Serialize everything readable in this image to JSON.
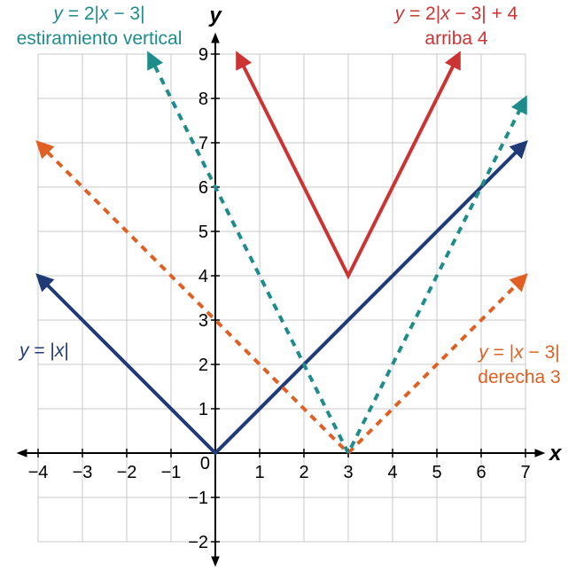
{
  "chart_data": {
    "type": "line",
    "xlabel": "x",
    "ylabel": "y",
    "xlim": [
      -4,
      7
    ],
    "ylim": [
      -2,
      9
    ],
    "grid": true,
    "x_ticks": [
      "−4",
      "−3",
      "−2",
      "−1",
      "1",
      "2",
      "3",
      "4",
      "5",
      "6",
      "7"
    ],
    "y_ticks": [
      "−2",
      "−1",
      "1",
      "2",
      "3",
      "4",
      "5",
      "6",
      "7",
      "8",
      "9"
    ],
    "origin_label": "0",
    "series": [
      {
        "key": "abs",
        "color": "#1f3a75",
        "dashed": false,
        "points": [
          [
            -4,
            4
          ],
          [
            0,
            0
          ],
          [
            7,
            7
          ]
        ],
        "label_lines": [
          [
            "y",
            " = |",
            "x",
            "|"
          ]
        ],
        "label_anchor": "start"
      },
      {
        "key": "shift_right",
        "color": "#e06024",
        "dashed": true,
        "points": [
          [
            -4,
            7
          ],
          [
            3,
            0
          ],
          [
            7,
            4
          ]
        ],
        "label_lines": [
          [
            "y",
            " = |",
            "x",
            " − 3|"
          ],
          [
            "derecha 3"
          ]
        ],
        "label_anchor": "middle"
      },
      {
        "key": "stretch",
        "color": "#1f8c8c",
        "dashed": true,
        "points": [
          [
            -1.5,
            9
          ],
          [
            3,
            0
          ],
          [
            7,
            8
          ]
        ],
        "label_lines": [
          [
            "y",
            " = 2|",
            "x",
            " − 3|"
          ],
          [
            "estiramiento vertical"
          ]
        ],
        "label_anchor": "middle"
      },
      {
        "key": "shift_up",
        "color": "#cc3333",
        "dashed": false,
        "points": [
          [
            0.5,
            9
          ],
          [
            3,
            4
          ],
          [
            5.5,
            9
          ]
        ],
        "label_lines": [
          [
            "y",
            " = 2|",
            "x",
            " − 3| + 4"
          ],
          [
            "arriba 4"
          ]
        ],
        "label_anchor": "middle"
      }
    ]
  }
}
